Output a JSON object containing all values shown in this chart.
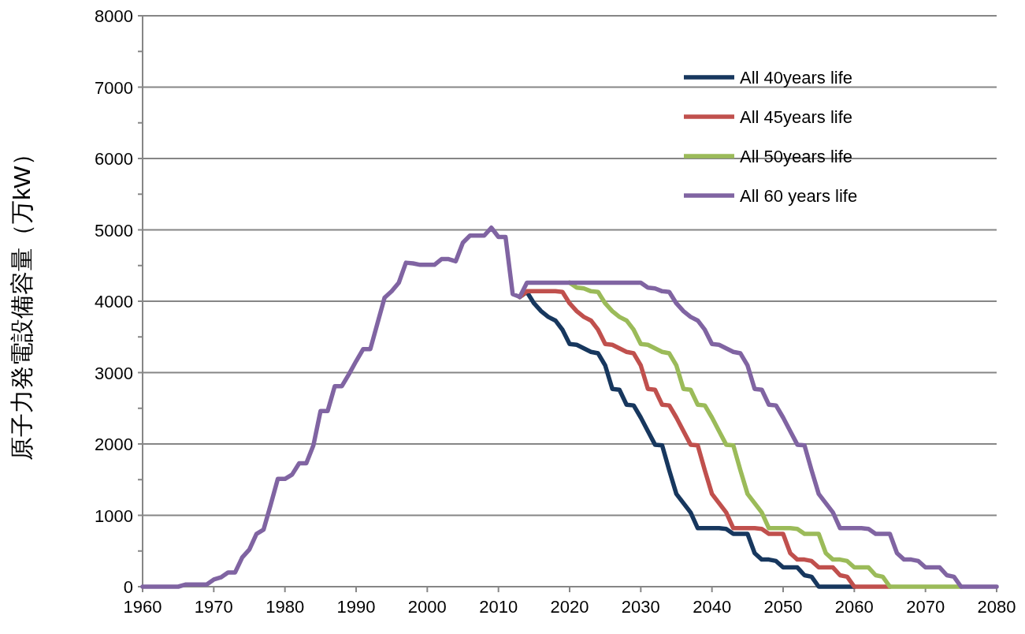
{
  "chart_data": {
    "type": "line",
    "ylabel": "原子力発電設備容量（万kW）",
    "x": [
      1960,
      1961,
      1962,
      1963,
      1964,
      1965,
      1966,
      1967,
      1968,
      1969,
      1970,
      1971,
      1972,
      1973,
      1974,
      1975,
      1976,
      1977,
      1978,
      1979,
      1980,
      1981,
      1982,
      1983,
      1984,
      1985,
      1986,
      1987,
      1988,
      1989,
      1990,
      1991,
      1992,
      1993,
      1994,
      1995,
      1996,
      1997,
      1998,
      1999,
      2000,
      2001,
      2002,
      2003,
      2004,
      2005,
      2006,
      2007,
      2008,
      2009,
      2010,
      2011,
      2012,
      2013,
      2014,
      2015,
      2016,
      2017,
      2018,
      2019,
      2020,
      2021,
      2022,
      2023,
      2024,
      2025,
      2026,
      2027,
      2028,
      2029,
      2030,
      2031,
      2032,
      2033,
      2034,
      2035,
      2036,
      2037,
      2038,
      2039,
      2040,
      2041,
      2042,
      2043,
      2044,
      2045,
      2046,
      2047,
      2048,
      2049,
      2050,
      2051,
      2052,
      2053,
      2054,
      2055,
      2056,
      2057,
      2058,
      2059,
      2060,
      2061,
      2062,
      2063,
      2064,
      2065,
      2066,
      2067,
      2068,
      2069,
      2070,
      2071,
      2072,
      2073,
      2074,
      2075,
      2076,
      2077,
      2078,
      2079,
      2080
    ],
    "series": [
      {
        "name": "All 40years life",
        "color": "#17375e",
        "values": [
          null,
          null,
          null,
          null,
          null,
          null,
          null,
          null,
          null,
          null,
          null,
          null,
          null,
          null,
          null,
          null,
          null,
          null,
          null,
          null,
          null,
          null,
          null,
          null,
          null,
          null,
          null,
          null,
          null,
          null,
          null,
          null,
          null,
          null,
          null,
          null,
          null,
          null,
          null,
          null,
          null,
          null,
          null,
          null,
          null,
          null,
          null,
          null,
          null,
          null,
          null,
          null,
          null,
          4060,
          4130,
          3970,
          3860,
          3780,
          3730,
          3600,
          3400,
          3390,
          3340,
          3290,
          3270,
          3100,
          2770,
          2760,
          2550,
          2540,
          2370,
          2180,
          1990,
          1980,
          1630,
          1300,
          1170,
          1040,
          820,
          820,
          820,
          820,
          810,
          740,
          740,
          740,
          470,
          380,
          380,
          360,
          270,
          270,
          270,
          160,
          140,
          0,
          0,
          0,
          0,
          0,
          0,
          null,
          null,
          null,
          null,
          null,
          null,
          null,
          null,
          null,
          null,
          null,
          null,
          null,
          null,
          null,
          null,
          null,
          null,
          null,
          null
        ]
      },
      {
        "name": "All 45years life",
        "color": "#c0504d",
        "values": [
          null,
          null,
          null,
          null,
          null,
          null,
          null,
          null,
          null,
          null,
          null,
          null,
          null,
          null,
          null,
          null,
          null,
          null,
          null,
          null,
          null,
          null,
          null,
          null,
          null,
          null,
          null,
          null,
          null,
          null,
          null,
          null,
          null,
          null,
          null,
          null,
          null,
          null,
          null,
          null,
          null,
          null,
          null,
          null,
          null,
          null,
          null,
          null,
          null,
          null,
          null,
          null,
          null,
          4060,
          4140,
          4140,
          4140,
          4140,
          4140,
          4130,
          3970,
          3860,
          3780,
          3730,
          3600,
          3400,
          3390,
          3340,
          3290,
          3270,
          3100,
          2770,
          2760,
          2550,
          2540,
          2370,
          2180,
          1990,
          1980,
          1630,
          1300,
          1170,
          1040,
          820,
          820,
          820,
          820,
          810,
          740,
          740,
          740,
          470,
          380,
          380,
          360,
          270,
          270,
          270,
          160,
          140,
          0,
          0,
          0,
          0,
          0,
          0,
          null,
          null,
          null,
          null,
          null,
          null,
          null,
          null,
          null,
          null,
          null,
          null,
          null,
          null,
          null
        ]
      },
      {
        "name": "All 50years life",
        "color": "#9bbb59",
        "values": [
          null,
          null,
          null,
          null,
          null,
          null,
          null,
          null,
          null,
          null,
          null,
          null,
          null,
          null,
          null,
          null,
          null,
          null,
          null,
          null,
          null,
          null,
          null,
          null,
          null,
          null,
          null,
          null,
          null,
          null,
          null,
          null,
          null,
          null,
          null,
          null,
          null,
          null,
          null,
          null,
          null,
          null,
          null,
          null,
          null,
          null,
          null,
          null,
          null,
          null,
          null,
          null,
          null,
          null,
          null,
          null,
          null,
          null,
          null,
          null,
          4260,
          4190,
          4180,
          4140,
          4130,
          3970,
          3860,
          3780,
          3730,
          3600,
          3400,
          3390,
          3340,
          3290,
          3270,
          3100,
          2770,
          2760,
          2550,
          2540,
          2370,
          2180,
          1990,
          1980,
          1630,
          1300,
          1170,
          1040,
          820,
          820,
          820,
          820,
          810,
          740,
          740,
          740,
          470,
          380,
          380,
          360,
          270,
          270,
          270,
          160,
          140,
          0,
          0,
          0,
          0,
          0,
          0,
          0,
          0,
          0,
          0,
          0,
          null,
          null,
          null,
          null,
          null
        ]
      },
      {
        "name": "All 60 years life",
        "color": "#8064a2",
        "values": [
          0,
          0,
          0,
          0,
          0,
          0,
          30,
          30,
          30,
          30,
          100,
          130,
          200,
          200,
          410,
          520,
          740,
          800,
          1150,
          1510,
          1510,
          1570,
          1730,
          1730,
          1980,
          2460,
          2460,
          2810,
          2810,
          2980,
          3160,
          3330,
          3330,
          3690,
          4050,
          4140,
          4260,
          4540,
          4530,
          4510,
          4510,
          4510,
          4590,
          4590,
          4560,
          4820,
          4920,
          4920,
          4920,
          5030,
          4900,
          4900,
          4100,
          4060,
          4260,
          4260,
          4260,
          4260,
          4260,
          4260,
          4260,
          4260,
          4260,
          4260,
          4260,
          4260,
          4260,
          4260,
          4260,
          4260,
          4260,
          4190,
          4180,
          4140,
          4130,
          3970,
          3860,
          3780,
          3730,
          3600,
          3400,
          3390,
          3340,
          3290,
          3270,
          3100,
          2770,
          2760,
          2550,
          2540,
          2370,
          2180,
          1990,
          1980,
          1630,
          1300,
          1170,
          1040,
          820,
          820,
          820,
          820,
          810,
          740,
          740,
          740,
          470,
          380,
          380,
          360,
          270,
          270,
          270,
          160,
          140,
          0,
          0,
          0,
          0,
          0,
          0
        ]
      }
    ],
    "xlim": [
      1960,
      2080
    ],
    "xticks": [
      1960,
      1970,
      1980,
      1990,
      2000,
      2010,
      2020,
      2030,
      2040,
      2050,
      2060,
      2070,
      2080
    ],
    "ylim": [
      0,
      8000
    ],
    "yticks": [
      0,
      {
        "value": 500,
        "label": null
      },
      1000,
      {
        "value": 1500,
        "label": null
      },
      2000,
      {
        "value": 2500,
        "label": null
      },
      3000,
      {
        "value": 3500,
        "label": null
      },
      4000,
      {
        "value": 4500,
        "label": null
      },
      5000,
      {
        "value": 5500,
        "label": null
      },
      6000,
      {
        "value": 6500,
        "label": null
      },
      7000,
      {
        "value": 7500,
        "label": null
      },
      8000
    ],
    "grid": "y",
    "legend": "top right",
    "marker": "none",
    "line_style": "solid"
  }
}
